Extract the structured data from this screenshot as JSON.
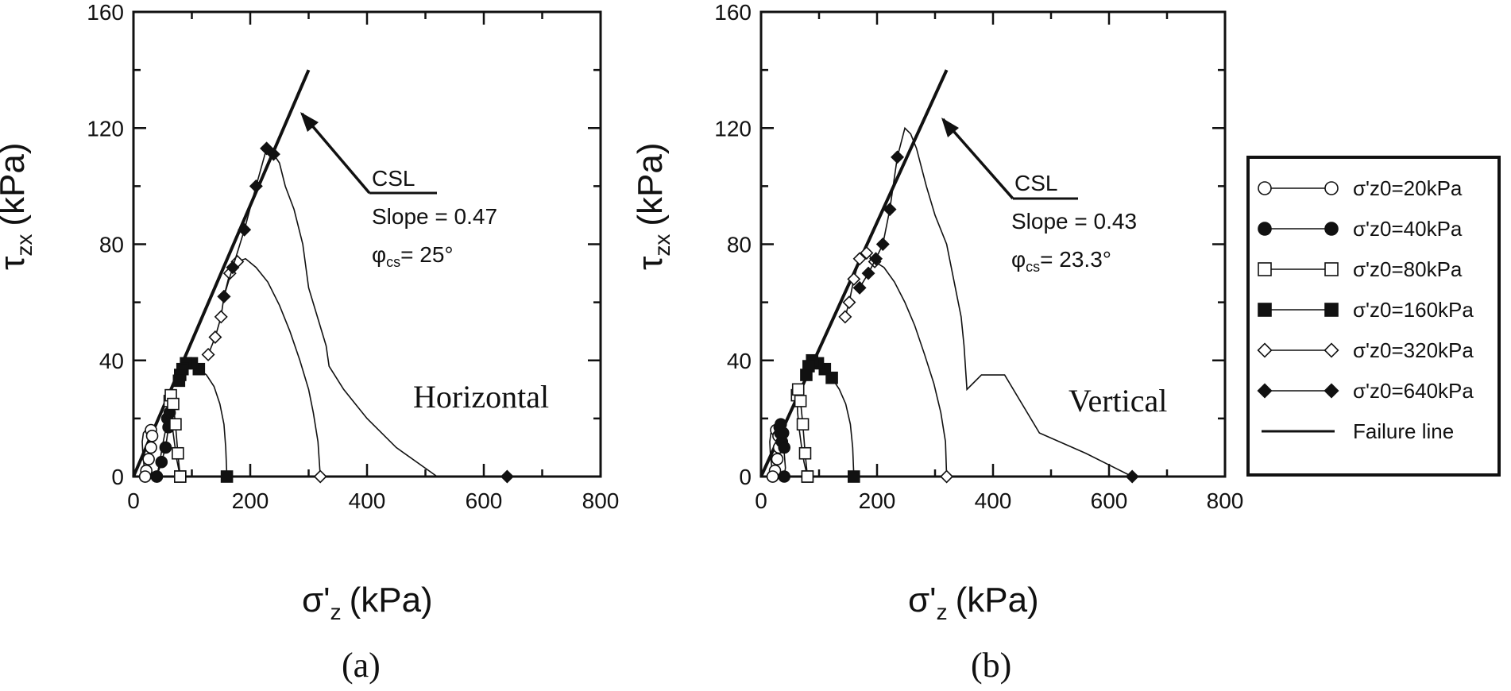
{
  "chart_data": [
    {
      "type": "line",
      "panel_label": "(a)",
      "orientation_label": "Horizontal",
      "xlabel": {
        "main": "σ'",
        "sub": "z",
        "unit": "(kPa)"
      },
      "ylabel": {
        "main": "τ",
        "sub": "zx",
        "unit": "(kPa)"
      },
      "xlim": [
        0,
        800
      ],
      "ylim": [
        0,
        160
      ],
      "xticks": [
        "0",
        "200",
        "400",
        "600",
        "800"
      ],
      "yticks": [
        "0",
        "40",
        "80",
        "120",
        "160"
      ],
      "failure_line": {
        "x": [
          0,
          300
        ],
        "y": [
          0,
          140
        ]
      },
      "annotation": {
        "csl": "CSL",
        "slope": "Slope = 0.47",
        "phi_symbol": "φ",
        "phi_sub": "cs",
        "phi_value": "= 25°"
      },
      "series": [
        {
          "name": "σ'z0=20kPa",
          "marker": "circle-open",
          "x": [
            20,
            18,
            16,
            15,
            17,
            21,
            26,
            30,
            32,
            30,
            26,
            22,
            20
          ],
          "y": [
            0,
            4,
            8,
            12,
            15,
            16,
            17,
            16,
            14,
            10,
            6,
            2,
            0
          ]
        },
        {
          "name": "σ'z0=40kPa",
          "marker": "circle-filled",
          "x": [
            40,
            45,
            50,
            55,
            58,
            62,
            60,
            55,
            48,
            40
          ],
          "y": [
            0,
            5,
            11,
            16,
            20,
            22,
            17,
            10,
            5,
            0
          ]
        },
        {
          "name": "σ'z0=80kPa",
          "marker": "square-open",
          "x": [
            80,
            74,
            70,
            66,
            63,
            62,
            64,
            68,
            72,
            76,
            80
          ],
          "y": [
            0,
            6,
            12,
            18,
            22,
            26,
            28,
            25,
            18,
            8,
            0
          ]
        },
        {
          "name": "σ'z0=160kPa",
          "marker": "square-filled",
          "x": [
            160,
            158,
            155,
            148,
            138,
            125,
            112,
            100,
            90,
            84,
            80,
            78
          ],
          "y": [
            0,
            10,
            18,
            25,
            31,
            35,
            37,
            39,
            39,
            37,
            35,
            33
          ]
        },
        {
          "name": "σ'z0=320kPa",
          "marker": "diamond-open",
          "x": [
            320,
            316,
            308,
            300,
            285,
            268,
            250,
            230,
            210,
            192,
            178,
            165,
            155,
            150,
            140,
            128
          ],
          "y": [
            0,
            12,
            22,
            30,
            40,
            50,
            59,
            67,
            72,
            75,
            74,
            70,
            62,
            55,
            48,
            42
          ]
        },
        {
          "name": "σ'z0=640kPa",
          "marker": "diamond-filled",
          "x": [
            640,
            600,
            520,
            450,
            400,
            360,
            335,
            330,
            315,
            300,
            290,
            275,
            260,
            250,
            240,
            228,
            210,
            190,
            170,
            155
          ],
          "y": [
            0,
            0,
            0,
            10,
            20,
            30,
            38,
            45,
            55,
            65,
            80,
            92,
            100,
            108,
            111,
            113,
            100,
            85,
            72,
            62
          ]
        }
      ]
    },
    {
      "type": "line",
      "panel_label": "(b)",
      "orientation_label": "Vertical",
      "xlabel": {
        "main": "σ'",
        "sub": "z",
        "unit": "(kPa)"
      },
      "ylabel": {
        "main": "τ",
        "sub": "zx",
        "unit": "(kPa)"
      },
      "xlim": [
        0,
        800
      ],
      "ylim": [
        0,
        160
      ],
      "xticks": [
        "0",
        "200",
        "400",
        "600",
        "800"
      ],
      "yticks": [
        "0",
        "40",
        "80",
        "120",
        "160"
      ],
      "failure_line": {
        "x": [
          0,
          320
        ],
        "y": [
          0,
          140
        ]
      },
      "annotation": {
        "csl": "CSL",
        "slope": "Slope = 0.43",
        "phi_symbol": "φ",
        "phi_sub": "cs",
        "phi_value": "= 23.3°"
      },
      "series": [
        {
          "name": "σ'z0=20kPa",
          "marker": "circle-open",
          "x": [
            20,
            18,
            16,
            15,
            17,
            21,
            26,
            30,
            31,
            28,
            24,
            20
          ],
          "y": [
            0,
            4,
            8,
            12,
            15,
            16,
            16,
            14,
            10,
            6,
            2,
            0
          ]
        },
        {
          "name": "σ'z0=40kPa",
          "marker": "circle-filled",
          "x": [
            40,
            42,
            40,
            36,
            33,
            32,
            34,
            38,
            40
          ],
          "y": [
            0,
            3,
            8,
            12,
            15,
            17,
            18,
            15,
            10
          ]
        },
        {
          "name": "σ'z0=80kPa",
          "marker": "square-open",
          "x": [
            80,
            74,
            70,
            66,
            63,
            62,
            64,
            68,
            72,
            76,
            80
          ],
          "y": [
            0,
            5,
            10,
            16,
            22,
            28,
            30,
            26,
            18,
            8,
            0
          ]
        },
        {
          "name": "σ'z0=160kPa",
          "marker": "square-filled",
          "x": [
            160,
            158,
            154,
            146,
            135,
            122,
            110,
            98,
            88,
            82,
            78
          ],
          "y": [
            0,
            10,
            18,
            25,
            30,
            34,
            37,
            39,
            40,
            38,
            35
          ]
        },
        {
          "name": "σ'z0=320kPa",
          "marker": "diamond-open",
          "x": [
            320,
            318,
            310,
            298,
            282,
            265,
            248,
            230,
            212,
            196,
            182,
            170,
            160,
            152,
            145
          ],
          "y": [
            0,
            12,
            22,
            32,
            42,
            52,
            60,
            67,
            72,
            74,
            77,
            75,
            68,
            60,
            55
          ]
        },
        {
          "name": "σ'z0=640kPa",
          "marker": "diamond-filled",
          "x": [
            640,
            560,
            480,
            420,
            380,
            365,
            355,
            350,
            345,
            335,
            320,
            300,
            285,
            268,
            258,
            248,
            235,
            222,
            210,
            198,
            185,
            170
          ],
          "y": [
            0,
            8,
            15,
            35,
            35,
            32,
            30,
            45,
            55,
            65,
            80,
            90,
            100,
            113,
            118,
            120,
            110,
            92,
            80,
            75,
            70,
            65
          ]
        }
      ]
    }
  ],
  "legend": {
    "items": [
      {
        "label": "σ'z0=20kPa",
        "marker": "circle-open"
      },
      {
        "label": "σ'z0=40kPa",
        "marker": "circle-filled"
      },
      {
        "label": "σ'z0=80kPa",
        "marker": "square-open"
      },
      {
        "label": "σ'z0=160kPa",
        "marker": "square-filled"
      },
      {
        "label": "σ'z0=320kPa",
        "marker": "diamond-open"
      },
      {
        "label": "σ'z0=640kPa",
        "marker": "diamond-filled"
      },
      {
        "label": "Failure line",
        "marker": "line"
      }
    ]
  },
  "colors": {
    "ink": "#111111",
    "background": "#ffffff"
  }
}
